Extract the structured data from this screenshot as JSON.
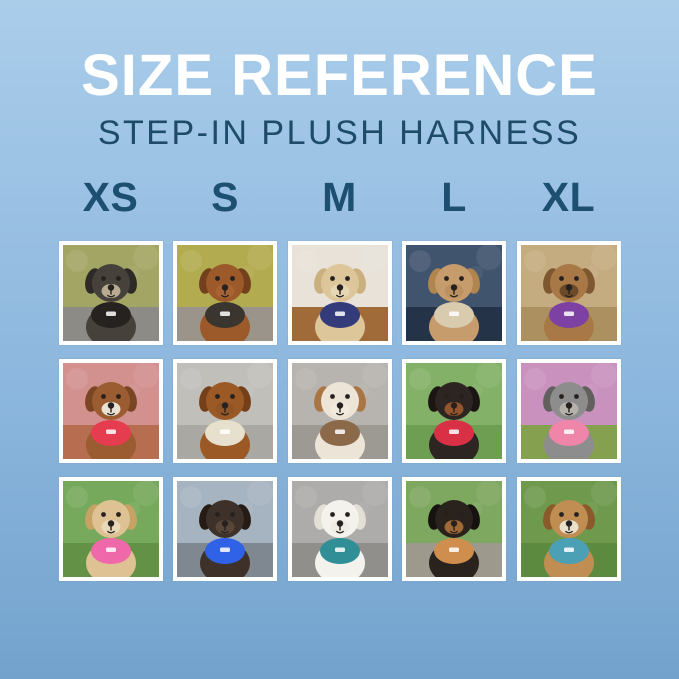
{
  "page": {
    "bg_top": "#aacdea",
    "bg_mid": "#8db7de",
    "bg_bottom": "#73a3cd"
  },
  "header": {
    "title": "SIZE REFERENCE",
    "subtitle": "STEP-IN PLUSH HARNESS",
    "title_color": "#ffffff",
    "subtitle_color": "#1e4b68"
  },
  "sizes": {
    "label_color": "#1d4f70",
    "labels": [
      "XS",
      "S",
      "M",
      "L",
      "XL"
    ]
  },
  "grid": {
    "frame_color": "#ffffff",
    "photos": [
      {
        "size": "XS",
        "alt": "Grey and black schnauzer mix wearing a black harness on an outdoor path",
        "scene_top": "#a3a564",
        "scene_ground": "#8d8b85",
        "dog": "#47413c",
        "dog2": "#2e2a27",
        "muzzle": "#b8ab92",
        "harness": "#26221f"
      },
      {
        "size": "S",
        "alt": "Red dachshund wearing a black harness on a gravel path with autumn trees",
        "scene_top": "#b3ab4f",
        "scene_ground": "#9b948a",
        "dog": "#9c5a2b",
        "dog2": "#73401d",
        "muzzle": "#a86335",
        "harness": "#3a352f"
      },
      {
        "size": "M",
        "alt": "Cream maltipoo wearing a navy blue harness on a hardwood floor",
        "scene_top": "#e8e2d8",
        "scene_ground": "#a06a39",
        "dog": "#dcc69a",
        "dog2": "#cbb07f",
        "muzzle": "#e6d7b4",
        "harness": "#333b7a"
      },
      {
        "size": "L",
        "alt": "Apricot goldendoodle wearing a cream harness sitting in a car seat",
        "scene_top": "#41546e",
        "scene_ground": "#243347",
        "dog": "#c69c6c",
        "dog2": "#b0854e",
        "muzzle": "#bb9160",
        "harness": "#d8cbae"
      },
      {
        "size": "XL",
        "alt": "Fawn french bulldog wearing a purple harness sitting in sand with paws raised",
        "scene_top": "#c5ab80",
        "scene_ground": "#ac905f",
        "dog": "#a87946",
        "dog2": "#7d572f",
        "muzzle": "#6b4a2a",
        "harness": "#7d41a3"
      },
      {
        "size": "XS",
        "alt": "Brown cavapoo wearing a red harness among pink autumn leaves",
        "scene_top": "#d2908e",
        "scene_ground": "#b66d50",
        "dog": "#9a5c30",
        "dog2": "#7a4522",
        "muzzle": "#e9e2d4",
        "harness": "#e63c50"
      },
      {
        "size": "S",
        "alt": "Ruby cavalier spaniel wearing a cream plush harness on a sidewalk",
        "scene_top": "#c0bfba",
        "scene_ground": "#a9a8a2",
        "dog": "#9b5926",
        "dog2": "#74401a",
        "muzzle": "#8f5526",
        "harness": "#e7e0cc"
      },
      {
        "size": "M",
        "alt": "Brown and white australian shepherd puppy wearing a tan harness on concrete",
        "scene_top": "#b7b4af",
        "scene_ground": "#9d9a93",
        "dog": "#ece4d6",
        "dog2": "#aa7544",
        "muzzle": "#f1ebdf",
        "harness": "#8b6949"
      },
      {
        "size": "L",
        "alt": "Black and tan miniature pinscher wearing a red harness on green grass",
        "scene_top": "#83b167",
        "scene_ground": "#6d9e51",
        "dog": "#2d2522",
        "dog2": "#1b1514",
        "muzzle": "#94542c",
        "harness": "#da3046"
      },
      {
        "size": "XL",
        "alt": "Grey schnauzer wearing a pink harness in front of pink azalea flowers",
        "scene_top": "#c992be",
        "scene_ground": "#85a04f",
        "dog": "#8d8d8d",
        "dog2": "#62605e",
        "muzzle": "#b5b2aa",
        "harness": "#ef85a9"
      },
      {
        "size": "XS",
        "alt": "Tan chihuahua wearing a pink harness on green grass",
        "scene_top": "#77a95c",
        "scene_ground": "#639247",
        "dog": "#dec294",
        "dog2": "#c6a264",
        "muzzle": "#e8d9b8",
        "harness": "#ef68aa"
      },
      {
        "size": "S",
        "alt": "Dark brussels griffon wearing a bright blue harness with a bone tag",
        "scene_top": "#a6b4c1",
        "scene_ground": "#7f8790",
        "dog": "#3e3129",
        "dog2": "#261c15",
        "muzzle": "#584639",
        "harness": "#2f62e6"
      },
      {
        "size": "M",
        "alt": "White bichon wearing a teal harness and leash on grey pavers",
        "scene_top": "#aeacab",
        "scene_ground": "#918f8c",
        "dog": "#f4f2ec",
        "dog2": "#e2dfd5",
        "muzzle": "#efece4",
        "harness": "#2f8e96"
      },
      {
        "size": "L",
        "alt": "Black and tan dachshund wearing a tan harness holding a stick in a park",
        "scene_top": "#7ea75f",
        "scene_ground": "#9e998d",
        "dog": "#2a231d",
        "dog2": "#161210",
        "muzzle": "#a06a38",
        "harness": "#cf8e4e"
      },
      {
        "size": "XL",
        "alt": "Beagle wearing a teal harness sitting on autumn grass",
        "scene_top": "#6f9a4e",
        "scene_ground": "#5c8a3f",
        "dog": "#c08d52",
        "dog2": "#8a5a2b",
        "muzzle": "#eadfca",
        "harness": "#4ba0b5"
      }
    ]
  }
}
